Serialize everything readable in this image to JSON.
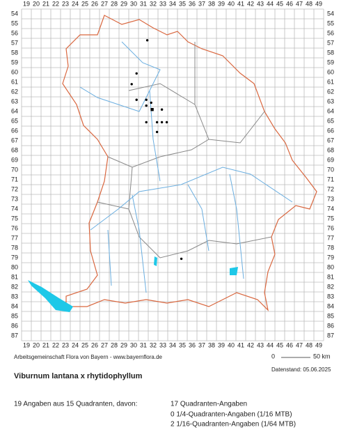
{
  "map": {
    "columns": [
      19,
      20,
      21,
      22,
      23,
      24,
      25,
      26,
      27,
      28,
      29,
      30,
      31,
      32,
      33,
      34,
      35,
      36,
      37,
      38,
      39,
      40,
      41,
      42,
      43,
      44,
      45,
      46,
      47,
      48,
      49
    ],
    "rows": [
      54,
      55,
      56,
      57,
      58,
      59,
      60,
      61,
      62,
      63,
      64,
      65,
      66,
      67,
      68,
      69,
      70,
      71,
      72,
      73,
      74,
      75,
      76,
      77,
      78,
      79,
      80,
      81,
      82,
      83,
      84,
      85,
      86,
      87
    ],
    "dots": [
      {
        "x": 31.4,
        "y": 56.7
      },
      {
        "x": 30.3,
        "y": 60.1
      },
      {
        "x": 29.8,
        "y": 61.2
      },
      {
        "x": 30.3,
        "y": 62.8
      },
      {
        "x": 31.3,
        "y": 62.8
      },
      {
        "x": 31.8,
        "y": 63.1
      },
      {
        "x": 31.3,
        "y": 63.4
      },
      {
        "x": 31.9,
        "y": 63.8,
        "marker": "square"
      },
      {
        "x": 32.9,
        "y": 63.8
      },
      {
        "x": 31.3,
        "y": 65.1
      },
      {
        "x": 32.4,
        "y": 65.1
      },
      {
        "x": 32.9,
        "y": 65.1
      },
      {
        "x": 33.4,
        "y": 65.1
      },
      {
        "x": 32.4,
        "y": 66.1
      },
      {
        "x": 34.9,
        "y": 79.1
      }
    ],
    "scale_bar": [
      "0",
      "50 km"
    ]
  },
  "credit": "Arbeitsgemeinschaft Flora von Bayern - www.bayernflora.de",
  "date": "Datenstand: 05.06.2025",
  "title": "Viburnum lantana x rhytidophyllum",
  "summary": "19 Angaben aus 15 Quadranten, davon:",
  "details": [
    "17 Quadranten-Angaben",
    "0 1/4-Quadranten-Angaben (1/16 MTB)",
    "2 1/16-Quadranten-Angaben (1/64 MTB)"
  ]
}
